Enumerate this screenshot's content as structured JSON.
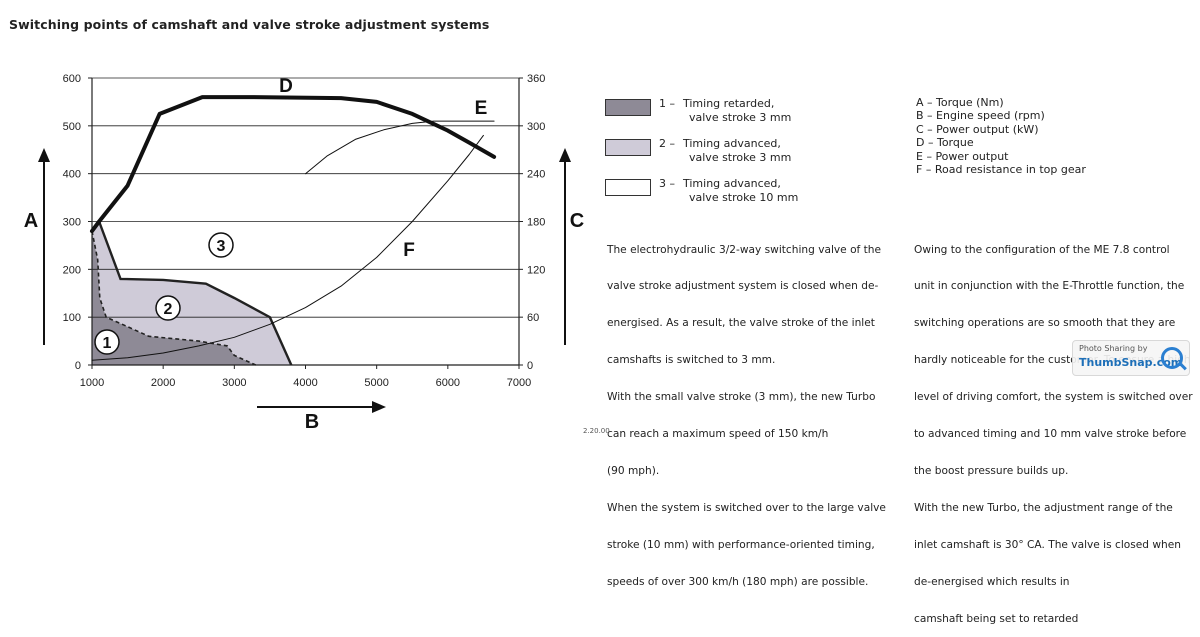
{
  "title": "Switching points of camshaft and valve stroke adjustment systems",
  "chart_data": {
    "type": "area",
    "x_axis": {
      "letter": "B",
      "min": 1000,
      "max": 7000,
      "ticks": [
        1000,
        2000,
        3000,
        4000,
        5000,
        6000,
        7000
      ]
    },
    "y_left_axis": {
      "letter": "A",
      "min": 0,
      "max": 600,
      "ticks": [
        0,
        100,
        200,
        300,
        400,
        500,
        600
      ]
    },
    "y_right_axis": {
      "letter": "C",
      "min": 0,
      "max": 360,
      "ticks": [
        0,
        60,
        120,
        180,
        240,
        300,
        360
      ]
    },
    "grid": "horizontal",
    "regions": [
      {
        "id": "1",
        "label": "1",
        "color": "#8e8a96",
        "points": [
          [
            1000,
            280
          ],
          [
            1080,
            220
          ],
          [
            1110,
            140
          ],
          [
            1200,
            100
          ],
          [
            1500,
            80
          ],
          [
            1800,
            60
          ],
          [
            2500,
            50
          ],
          [
            2900,
            40
          ],
          [
            3000,
            20
          ],
          [
            3300,
            0
          ],
          [
            1000,
            0
          ]
        ]
      },
      {
        "id": "2",
        "label": "2",
        "color": "#cfcbd8",
        "points": [
          [
            1000,
            280
          ],
          [
            1100,
            300
          ],
          [
            1400,
            180
          ],
          [
            2000,
            178
          ],
          [
            2600,
            170
          ],
          [
            3000,
            140
          ],
          [
            3500,
            100
          ],
          [
            3800,
            0
          ],
          [
            3300,
            0
          ],
          [
            3000,
            20
          ],
          [
            2900,
            40
          ],
          [
            2500,
            50
          ],
          [
            1800,
            60
          ],
          [
            1500,
            80
          ],
          [
            1200,
            100
          ],
          [
            1110,
            140
          ],
          [
            1080,
            220
          ]
        ]
      },
      {
        "id": "3",
        "label": "3",
        "color": "#ffffff",
        "points": []
      }
    ],
    "series": [
      {
        "name": "D",
        "axis": "left",
        "style": "thick",
        "points": [
          [
            1000,
            280
          ],
          [
            1100,
            300
          ],
          [
            1500,
            375
          ],
          [
            1950,
            525
          ],
          [
            2550,
            560
          ],
          [
            3200,
            560
          ],
          [
            4500,
            558
          ],
          [
            5000,
            550
          ],
          [
            5500,
            525
          ],
          [
            6000,
            490
          ],
          [
            6300,
            465
          ],
          [
            6650,
            435
          ]
        ]
      },
      {
        "name": "E",
        "axis": "right",
        "style": "thin",
        "points": [
          [
            4000,
            240
          ],
          [
            4300,
            262
          ],
          [
            4700,
            283
          ],
          [
            5100,
            295
          ],
          [
            5500,
            303
          ],
          [
            5800,
            306
          ],
          [
            6650,
            306
          ]
        ]
      },
      {
        "name": "F",
        "axis": "left",
        "style": "thin",
        "points": [
          [
            1000,
            10
          ],
          [
            1500,
            15
          ],
          [
            2000,
            25
          ],
          [
            2500,
            40
          ],
          [
            3000,
            58
          ],
          [
            3500,
            85
          ],
          [
            4000,
            120
          ],
          [
            4500,
            165
          ],
          [
            5000,
            225
          ],
          [
            5500,
            300
          ],
          [
            6000,
            385
          ],
          [
            6300,
            440
          ],
          [
            6500,
            480
          ]
        ]
      }
    ],
    "curve_letters": [
      "D",
      "E",
      "F"
    ]
  },
  "legend": [
    {
      "number": "1",
      "dash": "–",
      "line1": "Timing retarded,",
      "line2": "valve stroke 3 mm",
      "color": "#8e8a96"
    },
    {
      "number": "2",
      "dash": "–",
      "line1": "Timing advanced,",
      "line2": "valve stroke 3 mm",
      "color": "#cfcbd8"
    },
    {
      "number": "3",
      "dash": "–",
      "line1": "Timing advanced,",
      "line2": "valve stroke 10 mm",
      "color": "#ffffff"
    }
  ],
  "key": [
    "A – Torque (Nm)",
    "B – Engine speed (rpm)",
    "C – Power output (kW)",
    "D – Torque",
    "E – Power output",
    "F – Road resistance in top gear"
  ],
  "paragraph_left": [
    "The electrohydraulic 3/2-way switching valve of the",
    "valve stroke adjustment system is closed when de-",
    "energised. As a result, the valve stroke of the inlet",
    "camshafts is switched to 3 mm.",
    "With the small valve stroke (3 mm), the new Turbo",
    "can reach a maximum speed of 150 km/h",
    "(90 mph).",
    "When the system is switched over to the large valve",
    "stroke (10 mm) with performance-oriented timing,",
    "speeds of over 300 km/h (180 mph) are possible."
  ],
  "paragraph_right": [
    "Owing to the configuration of the ME 7.8 control",
    "unit in conjunction with the E-Throttle function, the",
    "switching operations are so smooth that they are",
    "hardly noticeable for the customer. To ensure a high",
    "level of driving comfort, the system is switched over",
    "to advanced timing and 10 mm valve stroke before",
    "the boost pressure builds up.",
    "With the new Turbo, the adjustment range of the",
    "inlet camshaft is 30° CA. The valve is closed when",
    "de-energised which results in",
    "camshaft being set to retarded"
  ],
  "watermark": {
    "line1": "Photo Sharing by",
    "line2": "ThumbSnap.com"
  },
  "footer_number": "2.20.00"
}
